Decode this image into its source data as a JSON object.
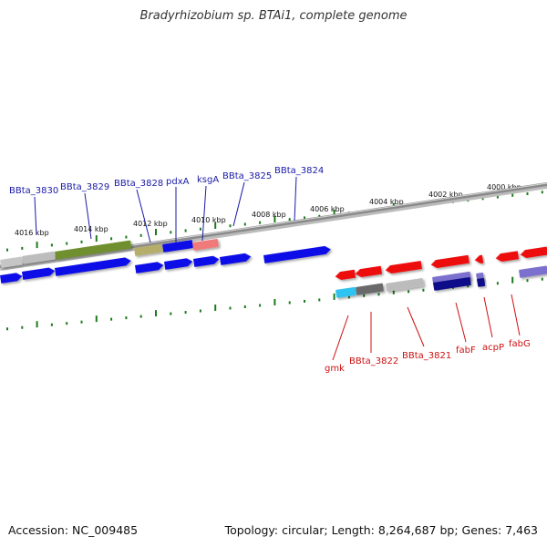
{
  "title": "Bradyrhizobium sp. BTAi1, complete genome",
  "accession": "Accession: NC_009485",
  "summary": "Topology: circular; Length: 8,264,687 bp; Genes: 7,463",
  "colors": {
    "background": "#ffffff",
    "backbone": "#8a8a8a",
    "tick": "#1c7a1c",
    "forward_gene": "#1010e8",
    "reverse_gene": "#ee1010",
    "forward_label": "#1a1aa8",
    "reverse_label": "#cc1111"
  },
  "scale_labels": [
    "4016 kbp",
    "4014 kbp",
    "4012 kbp",
    "4010 kbp",
    "4008 kbp",
    "4006 kbp",
    "4004 kbp",
    "4002 kbp",
    "4000 kbp"
  ],
  "forward_gene_labels": [
    "BBta_3830",
    "BBta_3829",
    "BBta_3828",
    "pdxA",
    "ksgA",
    "BBta_3825",
    "BBta_3824"
  ],
  "reverse_gene_labels": [
    "gmk",
    "BBta_3822",
    "BBta_3821",
    "fabF",
    "acpP",
    "fabG"
  ]
}
